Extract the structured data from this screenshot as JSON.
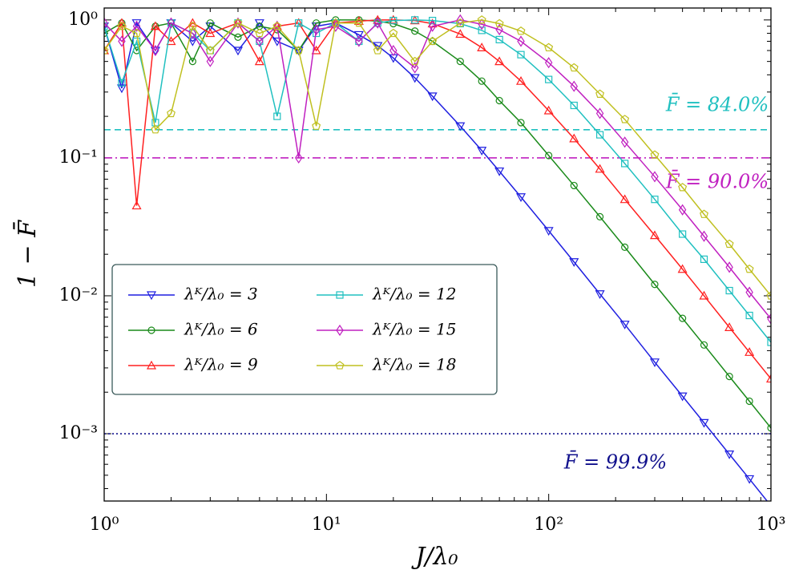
{
  "chart_data": {
    "type": "line",
    "log_x": true,
    "log_y": true,
    "x_label": "J/λ₀",
    "y_label": "1 − F̄",
    "xlim": [
      1,
      1000
    ],
    "ylim": [
      0.000325,
      1.22
    ],
    "xticks": [
      {
        "value": 1,
        "label": "10⁰"
      },
      {
        "value": 10,
        "label": "10¹"
      },
      {
        "value": 100,
        "label": "10²"
      },
      {
        "value": 1000,
        "label": "10³"
      }
    ],
    "yticks": [
      {
        "value": 0.001,
        "label": "10⁻³"
      },
      {
        "value": 0.01,
        "label": "10⁻²"
      },
      {
        "value": 0.1,
        "label": "10⁻¹"
      },
      {
        "value": 1,
        "label": "10⁰"
      }
    ],
    "legend": "middle left",
    "x": [
      1,
      1.2,
      1.4,
      1.7,
      2,
      2.5,
      3,
      4,
      5,
      6,
      7.5,
      9,
      11,
      14,
      17,
      20,
      25,
      30,
      40,
      50,
      60,
      75,
      100,
      130,
      170,
      220,
      300,
      400,
      500,
      650,
      800,
      1000
    ],
    "series": [
      {
        "name": "λᴷ/λ₀ = 3",
        "color": "#1f1fe0",
        "marker": "triangle-down",
        "values": [
          0.9,
          0.32,
          0.95,
          0.6,
          0.95,
          0.7,
          0.9,
          0.6,
          0.95,
          0.7,
          0.6,
          0.9,
          0.95,
          0.78,
          0.65,
          0.53,
          0.38,
          0.28,
          0.17,
          0.113,
          0.08,
          0.052,
          0.0296,
          0.0176,
          0.0103,
          0.0062,
          0.0033,
          0.00187,
          0.0012,
          0.00071,
          0.00047,
          0.0003
        ]
      },
      {
        "name": "λᴷ/λ₀ = 6",
        "color": "#1a8a1a",
        "marker": "circle",
        "values": [
          0.8,
          0.95,
          0.6,
          0.9,
          0.95,
          0.5,
          0.95,
          0.75,
          0.9,
          0.85,
          0.6,
          0.95,
          1.0,
          1.0,
          0.98,
          0.94,
          0.83,
          0.7,
          0.5,
          0.36,
          0.26,
          0.18,
          0.104,
          0.063,
          0.0374,
          0.0225,
          0.0121,
          0.00686,
          0.0044,
          0.0026,
          0.00172,
          0.0011
        ]
      },
      {
        "name": "λᴷ/λ₀ = 9",
        "color": "#ff2020",
        "marker": "triangle-up",
        "values": [
          0.6,
          0.95,
          0.045,
          0.9,
          0.7,
          0.95,
          0.8,
          0.95,
          0.5,
          0.9,
          0.95,
          0.6,
          0.95,
          0.98,
          1.0,
          1.0,
          0.99,
          0.94,
          0.79,
          0.63,
          0.5,
          0.36,
          0.22,
          0.138,
          0.083,
          0.05,
          0.0274,
          0.0156,
          0.01,
          0.0059,
          0.0039,
          0.0025
        ]
      },
      {
        "name": "λᴷ/λ₀ = 12",
        "color": "#20c0c0",
        "marker": "square",
        "values": [
          0.9,
          0.35,
          0.7,
          0.18,
          0.95,
          0.8,
          0.6,
          0.95,
          0.7,
          0.2,
          0.95,
          0.8,
          0.95,
          0.7,
          0.95,
          0.99,
          1.0,
          0.99,
          0.94,
          0.84,
          0.72,
          0.56,
          0.37,
          0.24,
          0.147,
          0.091,
          0.05,
          0.028,
          0.0184,
          0.0109,
          0.0072,
          0.0046
        ]
      },
      {
        "name": "λᴷ/λ₀ = 15",
        "color": "#c020c0",
        "marker": "diamond",
        "values": [
          0.95,
          0.7,
          0.9,
          0.6,
          0.95,
          0.8,
          0.5,
          0.95,
          0.7,
          0.9,
          0.1,
          0.85,
          0.9,
          0.7,
          0.95,
          0.6,
          0.45,
          0.9,
          1.0,
          0.93,
          0.85,
          0.7,
          0.49,
          0.33,
          0.21,
          0.13,
          0.073,
          0.042,
          0.027,
          0.0161,
          0.0106,
          0.0068
        ]
      },
      {
        "name": "λᴷ/λ₀ = 18",
        "color": "#c0c020",
        "marker": "pentagon",
        "values": [
          0.6,
          0.9,
          0.8,
          0.16,
          0.21,
          0.9,
          0.6,
          0.95,
          0.8,
          0.9,
          0.6,
          0.17,
          0.95,
          0.95,
          0.6,
          0.8,
          0.5,
          0.7,
          0.95,
          1.0,
          0.94,
          0.83,
          0.63,
          0.45,
          0.29,
          0.19,
          0.105,
          0.061,
          0.039,
          0.0237,
          0.0156,
          0.01
        ]
      }
    ],
    "reference_lines": [
      {
        "y": 0.16,
        "label": "F̄ = 84.0%",
        "color": "#20c0c0",
        "style": "dashed"
      },
      {
        "y": 0.1,
        "label": "F̄ = 90.0%",
        "color": "#c020c0",
        "style": "dashdot"
      },
      {
        "y": 0.001,
        "label": "F̄ = 99.9%",
        "color": "#10108c",
        "style": "dotted"
      }
    ]
  }
}
